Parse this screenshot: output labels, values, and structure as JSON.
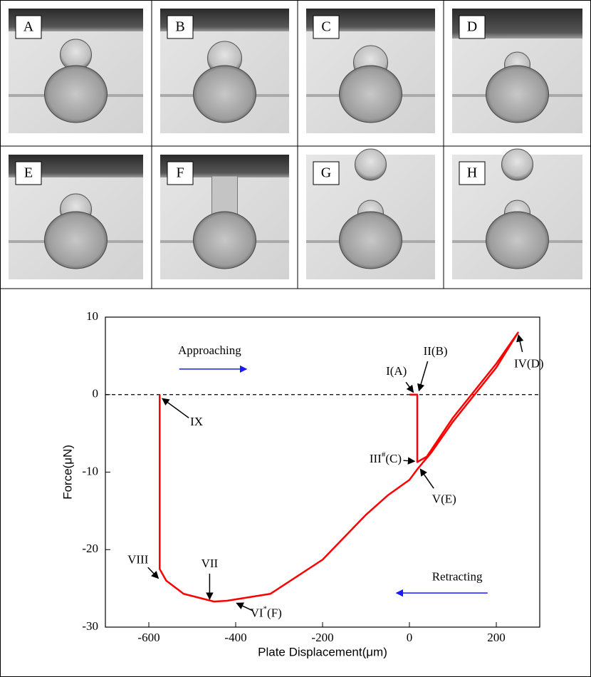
{
  "panels": [
    {
      "label": "A"
    },
    {
      "label": "B"
    },
    {
      "label": "C"
    },
    {
      "label": "D"
    },
    {
      "label": "E"
    },
    {
      "label": "F"
    },
    {
      "label": "G"
    },
    {
      "label": "H"
    }
  ],
  "chart_data": {
    "type": "line",
    "xlabel": "Plate Displacement(μm)",
    "ylabel": "Force(μN)",
    "xlim": [
      -700,
      300
    ],
    "ylim": [
      -30,
      10
    ],
    "xticks": [
      -600,
      -400,
      -200,
      0,
      200
    ],
    "yticks": [
      -30,
      -20,
      -10,
      0,
      10
    ],
    "reference_line": 0,
    "series": [
      {
        "color": "#ff0000",
        "x": [
          0,
          18,
          18,
          40,
          100,
          150,
          200,
          250,
          200,
          150,
          100,
          50,
          20,
          0,
          -50,
          -100,
          -200,
          -320,
          -420,
          -450,
          -520,
          -560,
          -575,
          -575
        ],
        "values": [
          0,
          0,
          -8.7,
          -8,
          -3,
          0.5,
          4,
          8,
          3.5,
          0,
          -3.5,
          -7.5,
          -9.5,
          -11,
          -13,
          -15.5,
          -21.3,
          -25.7,
          -26.6,
          -26.7,
          -25.7,
          -24,
          -22.5,
          0
        ]
      }
    ],
    "annotations": [
      {
        "text": "Approaching"
      },
      {
        "text": "Retracting"
      },
      {
        "text": "I(A)"
      },
      {
        "text": "II(B)"
      },
      {
        "text": "III",
        "sup": "#",
        "after": "(C)"
      },
      {
        "text": "IV(D)"
      },
      {
        "text": "V(E)"
      },
      {
        "text": "VI",
        "sup": "*",
        "after": "(F)"
      },
      {
        "text": "VII"
      },
      {
        "text": "VIII"
      },
      {
        "text": "IX"
      }
    ]
  }
}
